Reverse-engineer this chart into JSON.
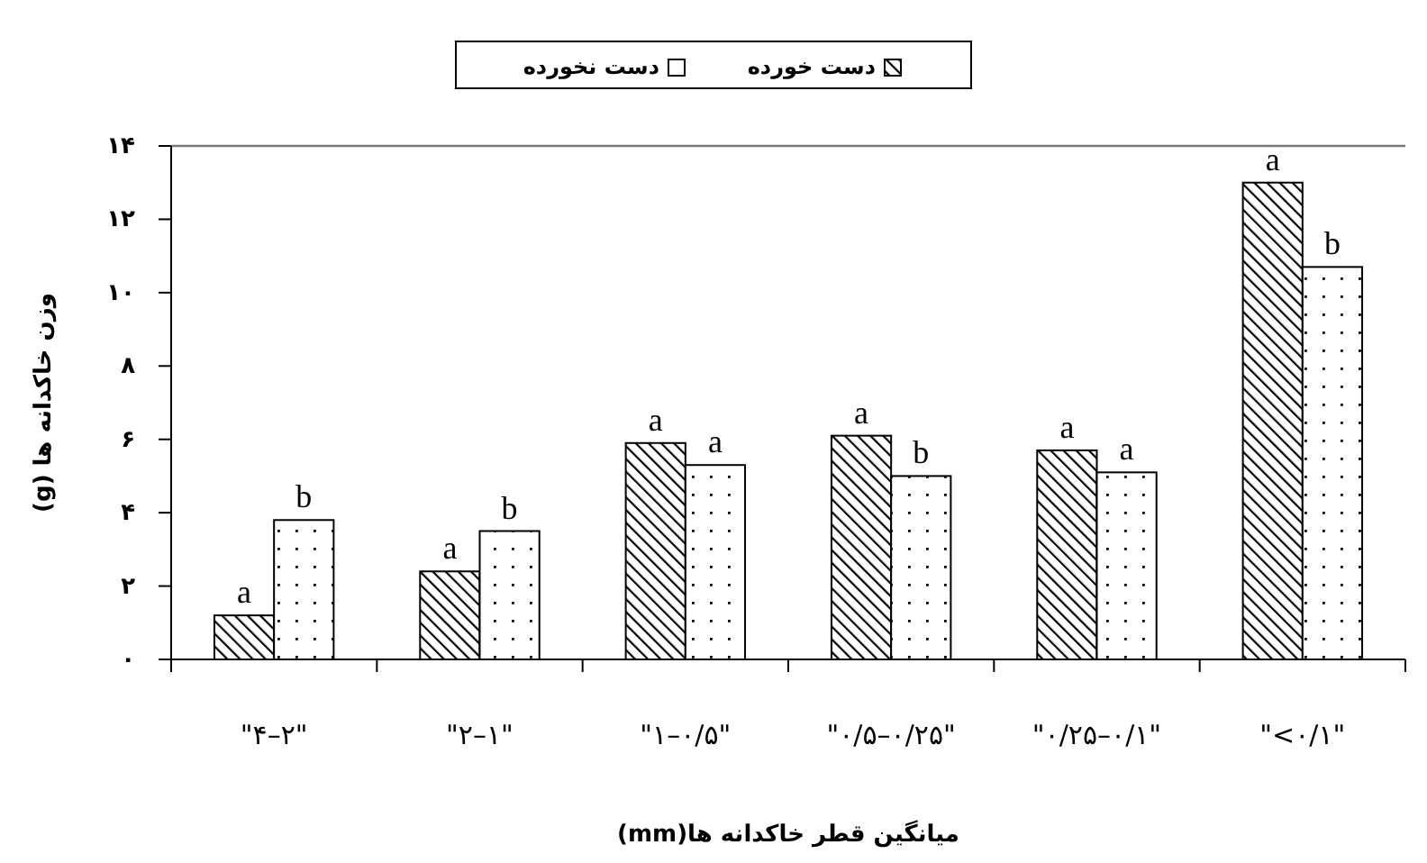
{
  "chart_data": {
    "type": "bar",
    "xlabel": "میانگین قطر خاکدانه ها(mm)",
    "ylabel": "وزن خاکدانه ها (g)",
    "categories": [
      "\"۴–۲\"",
      "\"۲–۱\"",
      "\"۱–۰/۵\"",
      "\"۰/۵–۰/۲۵\"",
      "\"۰/۲۵–۰/۱\"",
      "\"<۰/۱\""
    ],
    "series": [
      {
        "name": "دست خورده",
        "color": "#000000",
        "values": [
          1.2,
          2.4,
          5.9,
          6.1,
          5.7,
          13.0
        ]
      },
      {
        "name": "دست نخورده",
        "color": "#000000",
        "values": [
          3.8,
          3.5,
          5.3,
          5.0,
          5.1,
          10.7
        ]
      }
    ],
    "ylim": [
      0,
      14
    ],
    "yticks": [
      {
        "value": 0,
        "label": "۰"
      },
      {
        "value": 2,
        "label": "۲"
      },
      {
        "value": 4,
        "label": "۴"
      },
      {
        "value": 6,
        "label": "۶"
      },
      {
        "value": 8,
        "label": "۸"
      },
      {
        "value": 10,
        "label": "۱۰"
      },
      {
        "value": 12,
        "label": "۱۲"
      },
      {
        "value": 14,
        "label": "۱۴"
      }
    ],
    "legend": "top",
    "annotations": [
      {
        "text": "a",
        "x": "\"۴–۲\"",
        "y": 1.2
      },
      {
        "text": "b",
        "x": "\"۴–۲\"",
        "y": 3.8
      },
      {
        "text": "a",
        "x": "\"۲–۱\"",
        "y": 2.4
      },
      {
        "text": "b",
        "x": "\"۲–۱\"",
        "y": 3.5
      },
      {
        "text": "a",
        "x": "\"۱–۰/۵\"",
        "y": 5.9
      },
      {
        "text": "a",
        "x": "\"۱–۰/۵\"",
        "y": 5.3
      },
      {
        "text": "a",
        "x": "\"۰/۵–۰/۲۵\"",
        "y": 6.1
      },
      {
        "text": "b",
        "x": "\"۰/۵–۰/۲۵\"",
        "y": 5.0
      },
      {
        "text": "a",
        "x": "\"۰/۲۵–۰/۱\"",
        "y": 5.7
      },
      {
        "text": "a",
        "x": "\"۰/۲۵–۰/۱\"",
        "y": 5.1
      },
      {
        "text": "a",
        "x": "\"<۰/۱\"",
        "y": 13.0
      },
      {
        "text": "b",
        "x": "\"<۰/۱\"",
        "y": 10.7
      }
    ]
  }
}
